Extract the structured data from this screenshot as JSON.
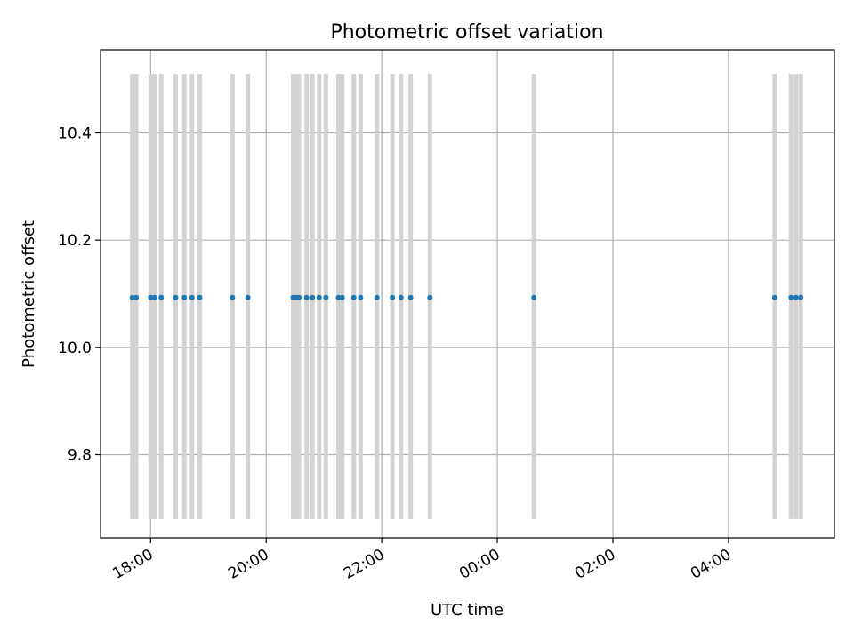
{
  "chart_data": {
    "type": "scatter",
    "title": "Photometric offset variation",
    "xlabel": "UTC time",
    "ylabel": "Photometric offset",
    "x_axis_kind": "time",
    "x_range": [
      "17:08",
      "05:50"
    ],
    "ylim": [
      9.645,
      10.555
    ],
    "yticks": [
      9.8,
      10.0,
      10.2,
      10.4
    ],
    "ytick_labels": [
      "9.8",
      "10.0",
      "10.2",
      "10.4"
    ],
    "xticks": [
      "18:00",
      "20:00",
      "22:00",
      "00:00",
      "02:00",
      "04:00"
    ],
    "xtick_labels": [
      "18:00",
      "20:00",
      "22:00",
      "00:00",
      "02:00",
      "04:00"
    ],
    "grid": true,
    "legend": "none",
    "point_color": "#1f77b4",
    "interval_color": "#d3d3d3",
    "interval_y_range": [
      9.68,
      10.51
    ],
    "series": [
      {
        "times": [
          "17:41",
          "17:45",
          "18:00",
          "18:04",
          "18:11",
          "18:26",
          "18:35",
          "18:43",
          "18:51",
          "19:25",
          "19:41",
          "20:28",
          "20:31",
          "20:34",
          "20:42",
          "20:48",
          "20:55",
          "21:02",
          "21:15",
          "21:19",
          "21:31",
          "21:38",
          "21:55",
          "22:11",
          "22:20",
          "22:30",
          "22:50",
          "00:38",
          "04:48",
          "05:05",
          "05:10",
          "05:15"
        ],
        "values": [
          10.093,
          10.093,
          10.093,
          10.093,
          10.093,
          10.093,
          10.093,
          10.093,
          10.093,
          10.093,
          10.093,
          10.093,
          10.093,
          10.093,
          10.093,
          10.093,
          10.093,
          10.093,
          10.093,
          10.093,
          10.093,
          10.093,
          10.093,
          10.093,
          10.093,
          10.093,
          10.093,
          10.093,
          10.093,
          10.093,
          10.093,
          10.093
        ]
      }
    ],
    "intervals": [
      "17:41",
      "17:45",
      "18:00",
      "18:04",
      "18:11",
      "18:26",
      "18:35",
      "18:43",
      "18:51",
      "19:25",
      "19:41",
      "20:28",
      "20:31",
      "20:34",
      "20:42",
      "20:48",
      "20:55",
      "21:02",
      "21:15",
      "21:19",
      "21:31",
      "21:38",
      "21:55",
      "22:11",
      "22:20",
      "22:30",
      "22:50",
      "00:38",
      "04:48",
      "05:05",
      "05:10",
      "05:15"
    ]
  }
}
